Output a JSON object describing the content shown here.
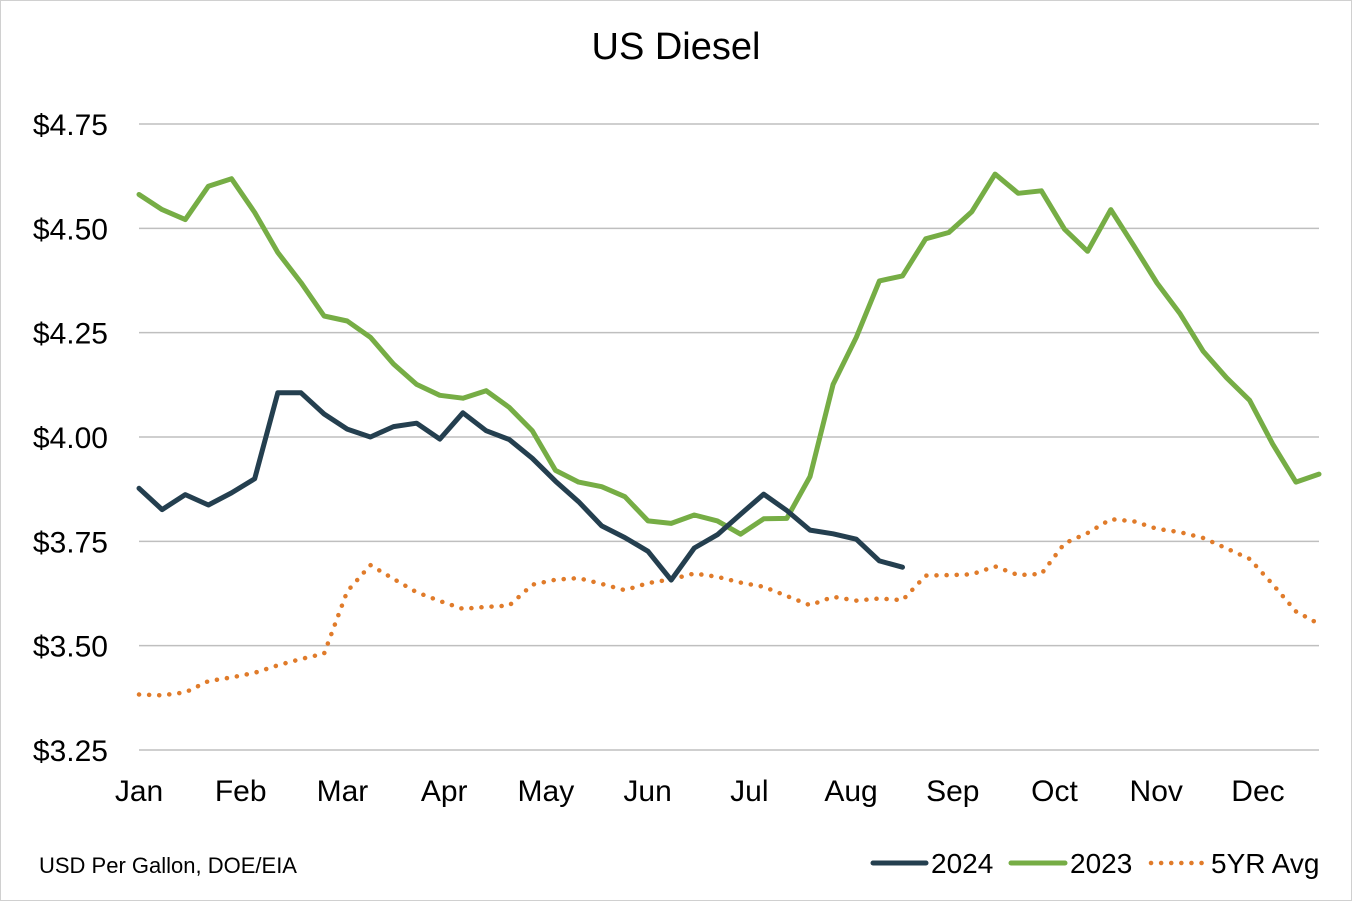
{
  "chart_data": {
    "type": "line",
    "title": "US Diesel",
    "source_note": "USD Per Gallon, DOE/EIA",
    "y_ticks": [
      "$4.75",
      "$4.50",
      "$4.25",
      "$4.00",
      "$3.75",
      "$3.50",
      "$3.25"
    ],
    "y_tick_values": [
      4.75,
      4.5,
      4.25,
      4.0,
      3.75,
      3.5,
      3.25
    ],
    "ylim": [
      3.25,
      4.75
    ],
    "x_months": [
      "Jan",
      "Feb",
      "Mar",
      "Apr",
      "May",
      "Jun",
      "Jul",
      "Aug",
      "Sep",
      "Oct",
      "Nov",
      "Dec"
    ],
    "xlim_weeks": [
      0,
      51
    ],
    "grid": "horizontal",
    "legend_position": "bottom-right",
    "series": [
      {
        "name": "2024",
        "color": "#243f4f",
        "style": "solid",
        "weeks": [
          0,
          1,
          2,
          3,
          4,
          5,
          6,
          7,
          8,
          9,
          10,
          11,
          12,
          13,
          14,
          15,
          16,
          17,
          18,
          19,
          20,
          21,
          22,
          23,
          24,
          25,
          26,
          27,
          28,
          29,
          30,
          31,
          32,
          33
        ],
        "values": [
          3.877,
          3.826,
          3.862,
          3.837,
          3.866,
          3.9,
          4.106,
          4.106,
          4.055,
          4.019,
          4.0,
          4.025,
          4.033,
          3.995,
          4.058,
          4.015,
          3.994,
          3.949,
          3.894,
          3.845,
          3.787,
          3.759,
          3.726,
          3.657,
          3.734,
          3.766,
          3.815,
          3.863,
          3.824,
          3.777,
          3.768,
          3.755,
          3.703,
          3.688
        ]
      },
      {
        "name": "2023",
        "color": "#76ad45",
        "style": "solid",
        "weeks": [
          0,
          1,
          2,
          3,
          4,
          5,
          6,
          7,
          8,
          9,
          10,
          11,
          12,
          13,
          14,
          15,
          16,
          17,
          18,
          19,
          20,
          21,
          22,
          23,
          24,
          25,
          26,
          27,
          28,
          29,
          30,
          31,
          32,
          33,
          34,
          35,
          36,
          37,
          38,
          39,
          40,
          41,
          42,
          43,
          44,
          45,
          46,
          47,
          48,
          49,
          50,
          51
        ],
        "values": [
          4.581,
          4.545,
          4.521,
          4.601,
          4.619,
          4.538,
          4.442,
          4.37,
          4.29,
          4.278,
          4.239,
          4.175,
          4.126,
          4.1,
          4.093,
          4.111,
          4.071,
          4.015,
          3.92,
          3.892,
          3.881,
          3.857,
          3.799,
          3.793,
          3.813,
          3.799,
          3.767,
          3.804,
          3.805,
          3.905,
          4.126,
          4.239,
          4.374,
          4.386,
          4.475,
          4.49,
          4.54,
          4.63,
          4.584,
          4.59,
          4.498,
          4.445,
          4.545,
          4.458,
          4.369,
          4.295,
          4.205,
          4.142,
          4.088,
          3.983,
          3.892,
          3.911
        ]
      },
      {
        "name": "5YR Avg",
        "color": "#e07b2a",
        "style": "dotted",
        "weeks": [
          0,
          1,
          2,
          3,
          4,
          5,
          6,
          7,
          8,
          9,
          10,
          11,
          12,
          13,
          14,
          15,
          16,
          17,
          18,
          19,
          20,
          21,
          22,
          23,
          24,
          25,
          26,
          27,
          28,
          29,
          30,
          31,
          32,
          33,
          34,
          35,
          36,
          37,
          38,
          39,
          40,
          41,
          42,
          43,
          44,
          45,
          46,
          47,
          48,
          49,
          50,
          51
        ],
        "values": [
          3.383,
          3.381,
          3.388,
          3.415,
          3.424,
          3.435,
          3.453,
          3.468,
          3.481,
          3.63,
          3.693,
          3.66,
          3.628,
          3.607,
          3.588,
          3.593,
          3.596,
          3.646,
          3.658,
          3.662,
          3.648,
          3.633,
          3.65,
          3.659,
          3.673,
          3.665,
          3.651,
          3.641,
          3.619,
          3.597,
          3.617,
          3.608,
          3.613,
          3.609,
          3.668,
          3.669,
          3.671,
          3.69,
          3.669,
          3.672,
          3.745,
          3.77,
          3.803,
          3.798,
          3.78,
          3.772,
          3.758,
          3.733,
          3.708,
          3.647,
          3.582,
          3.552
        ]
      }
    ]
  }
}
